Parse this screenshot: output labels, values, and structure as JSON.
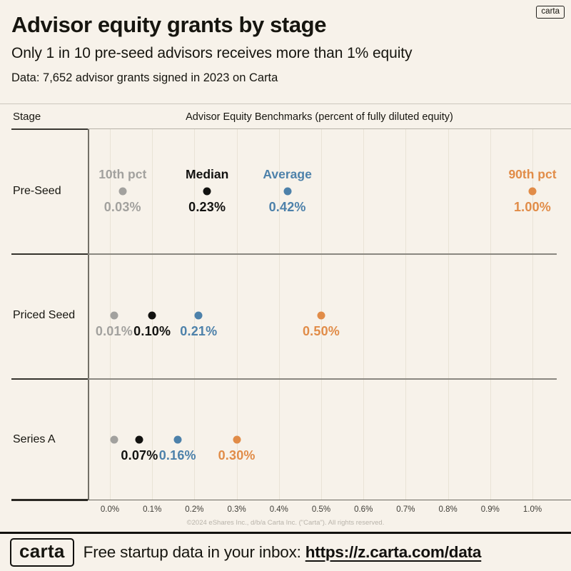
{
  "badge": {
    "label": "carta"
  },
  "chart_data": {
    "type": "scatter",
    "title": "Advisor equity grants by stage",
    "subtitle": "Only 1 in 10 pre-seed advisors receives more than 1% equity",
    "source_note": "Data: 7,652 advisor grants signed in 2023 on Carta",
    "row_header": "Stage",
    "column_header": "Advisor Equity Benchmarks (percent of fully diluted equity)",
    "categories": [
      "Pre-Seed",
      "Priced Seed",
      "Series A"
    ],
    "series": [
      {
        "name": "10th pct",
        "color": "#a2a19e",
        "values": [
          0.03,
          0.01,
          0.01
        ],
        "labels": [
          "0.03%",
          "0.01%",
          ""
        ]
      },
      {
        "name": "Median",
        "color": "#121210",
        "values": [
          0.23,
          0.1,
          0.07
        ],
        "labels": [
          "0.23%",
          "0.10%",
          "0.07%"
        ]
      },
      {
        "name": "Average",
        "color": "#4d81aa",
        "values": [
          0.42,
          0.21,
          0.16
        ],
        "labels": [
          "0.42%",
          "0.21%",
          "0.16%"
        ]
      },
      {
        "name": "90th pct",
        "color": "#e18c48",
        "values": [
          1.0,
          0.5,
          0.3
        ],
        "labels": [
          "1.00%",
          "0.50%",
          "0.30%"
        ]
      }
    ],
    "x_axis": {
      "min": 0,
      "max": 1,
      "ticks": [
        "0.0%",
        "0.1%",
        "0.2%",
        "0.3%",
        "0.4%",
        "0.5%",
        "0.6%",
        "0.7%",
        "0.8%",
        "0.9%",
        "1.0%"
      ]
    },
    "series_name_labels_on_row": 0,
    "grid": true,
    "legend_position": "inline-above-first-row"
  },
  "copyright": "©2024 eShares Inc., d/b/a Carta Inc. (\"Carta\"). All rights reserved.",
  "footer": {
    "logo": "carta",
    "cta": "Free startup data in your inbox: ",
    "url": "https://z.carta.com/data"
  }
}
